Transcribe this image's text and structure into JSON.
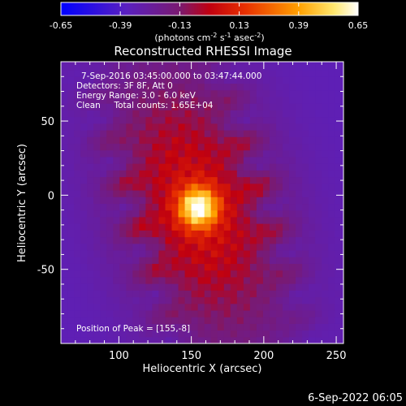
{
  "colorbar": {
    "ticks": [
      "-0.65",
      "-0.39",
      "-0.13",
      "0.13",
      "0.39",
      "0.65"
    ],
    "units": {
      "prefix": "(photons cm",
      "sup1": "-2",
      "mid1": " s",
      "sup2": "-1",
      "mid2": " asec",
      "sup3": "-2",
      "suffix": ")"
    }
  },
  "chart_data": {
    "type": "heatmap",
    "title": "Reconstructed RHESSI Image",
    "xlabel": "Heliocentric X (arcsec)",
    "ylabel": "Heliocentric Y (arcsec)",
    "xlim": [
      60,
      255
    ],
    "ylim": [
      -100,
      90
    ],
    "xticks": [
      "100",
      "150",
      "200",
      "250"
    ],
    "yticks": [
      "50",
      "0",
      "-50"
    ],
    "color_scale": {
      "min": -0.65,
      "max": 0.65,
      "colormap": "rainbow-to-hot"
    },
    "peak": {
      "x": 155,
      "y": -8
    },
    "annotations": [
      "7-Sep-2016 03:45:00.000 to 03:47:44.000",
      "Detectors: 3F 8F, Att 0",
      "Energy Range: 3.0 - 6.0 keV",
      "Clean     Total counts: 1.65E+04",
      "Position of Peak = [155,-8]"
    ]
  },
  "footer_timestamp": "6-Sep-2022 06:05"
}
